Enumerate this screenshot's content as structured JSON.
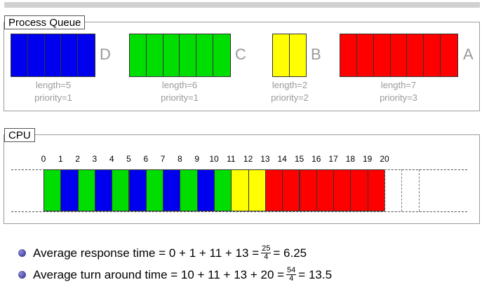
{
  "queue": {
    "title": "Process Queue",
    "processes": [
      {
        "letter": "D",
        "length": "length=5",
        "priority": "priority=1",
        "units": 5,
        "color": "#0000ee"
      },
      {
        "letter": "C",
        "length": "length=6",
        "priority": "priority=1",
        "units": 6,
        "color": "#00dd00"
      },
      {
        "letter": "B",
        "length": "length=2",
        "priority": "priority=2",
        "units": 2,
        "color": "#ffff00"
      },
      {
        "letter": "A",
        "length": "length=7",
        "priority": "priority=3",
        "units": 7,
        "color": "#ff0000"
      }
    ]
  },
  "cpu": {
    "title": "CPU",
    "ticks": [
      "0",
      "1",
      "2",
      "3",
      "4",
      "5",
      "6",
      "7",
      "8",
      "9",
      "10",
      "11",
      "12",
      "13",
      "14",
      "15",
      "16",
      "17",
      "18",
      "19",
      "20"
    ],
    "schedule": [
      "C",
      "D",
      "C",
      "D",
      "C",
      "D",
      "C",
      "D",
      "C",
      "D",
      "C",
      "B",
      "B",
      "A",
      "A",
      "A",
      "A",
      "A",
      "A",
      "A"
    ],
    "colors": {
      "A": "#ff0000",
      "B": "#ffff00",
      "C": "#00dd00",
      "D": "#0000ee"
    }
  },
  "stats": {
    "response_pre": "Average response time = 0 + 1 + 11 + 13 =",
    "response_num": "25",
    "response_den": "4",
    "response_post": "= 6.25",
    "turnaround_pre": "Average turn around time = 10 + 11 + 13 + 20 =",
    "turnaround_num": "54",
    "turnaround_den": "4",
    "turnaround_post": "= 13.5"
  }
}
